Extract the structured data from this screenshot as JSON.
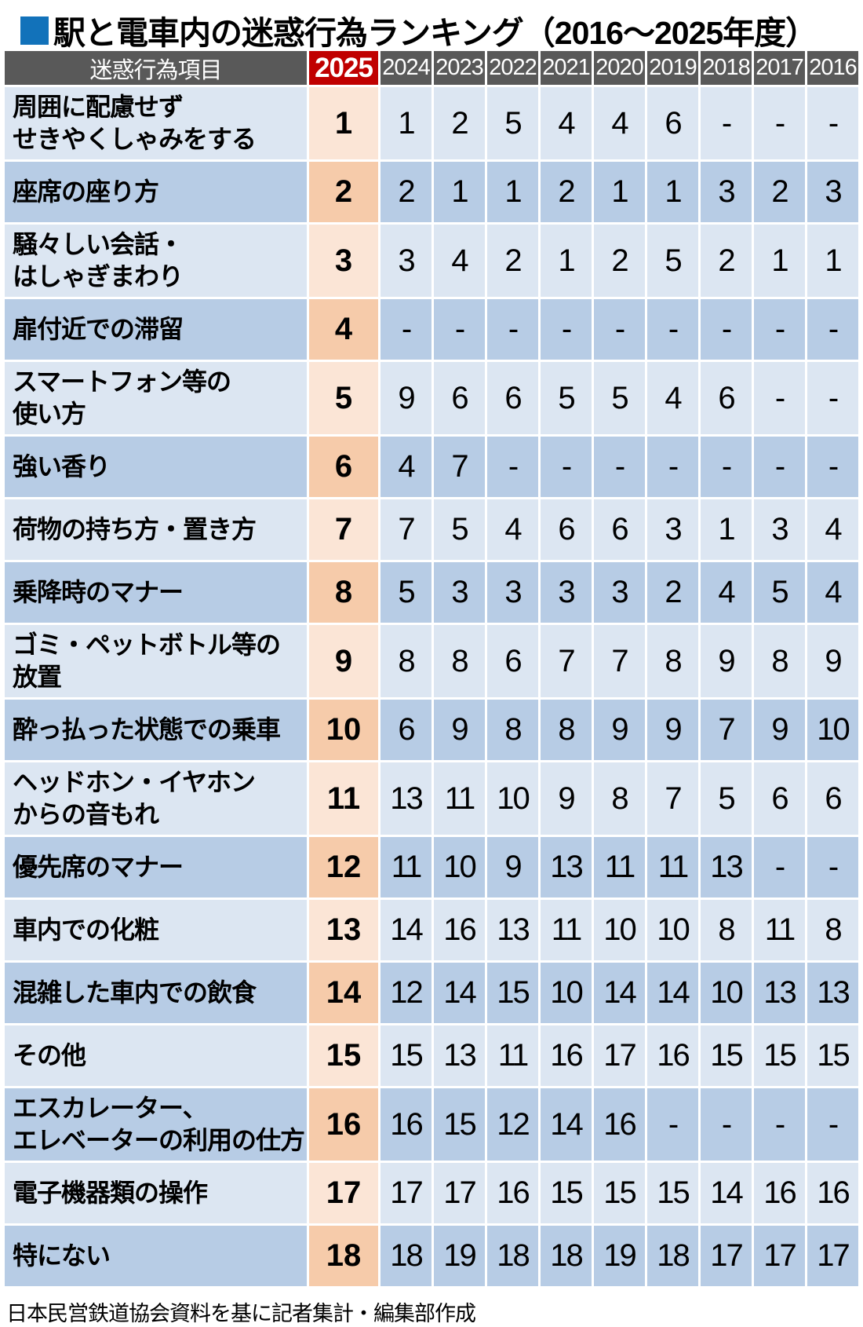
{
  "title": {
    "text": "駅と電車内の迷惑行為ランキング（2016～2025年度）",
    "bullet": "■"
  },
  "source_note": "日本民営鉄道協会資料を基に記者集計・編集部作成",
  "colors": {
    "header-bg": "#595959",
    "header-red": "#c00000",
    "row-light": "#dce6f2",
    "row-dark": "#b7cce5",
    "rank-light": "#fbe5d6",
    "rank-dark": "#f6cbaa",
    "title-blue": "#1272ba"
  },
  "chart_data": {
    "type": "table",
    "title": "駅と電車内の迷惑行為ランキング（2016～2025年度）",
    "columns": [
      "迷惑行為項目",
      "2025",
      "2024",
      "2023",
      "2022",
      "2021",
      "2020",
      "2019",
      "2018",
      "2017",
      "2016"
    ],
    "highlight_column": "2025",
    "rows": [
      {
        "item": "周囲に配慮せず\nせきやくしゃみをする",
        "rank_2025": "1",
        "values": [
          "1",
          "2",
          "5",
          "4",
          "4",
          "6",
          "-",
          "-",
          "-"
        ]
      },
      {
        "item": "座席の座り方",
        "rank_2025": "2",
        "values": [
          "2",
          "1",
          "1",
          "2",
          "1",
          "1",
          "3",
          "2",
          "3"
        ]
      },
      {
        "item": "騒々しい会話・\nはしゃぎまわり",
        "rank_2025": "3",
        "values": [
          "3",
          "4",
          "2",
          "1",
          "2",
          "5",
          "2",
          "1",
          "1"
        ]
      },
      {
        "item": "扉付近での滞留",
        "rank_2025": "4",
        "values": [
          "-",
          "-",
          "-",
          "-",
          "-",
          "-",
          "-",
          "-",
          "-"
        ]
      },
      {
        "item": "スマートフォン等の\n使い方",
        "rank_2025": "5",
        "values": [
          "9",
          "6",
          "6",
          "5",
          "5",
          "4",
          "6",
          "-",
          "-"
        ]
      },
      {
        "item": "強い香り",
        "rank_2025": "6",
        "values": [
          "4",
          "7",
          "-",
          "-",
          "-",
          "-",
          "-",
          "-",
          "-"
        ]
      },
      {
        "item": "荷物の持ち方・置き方",
        "rank_2025": "7",
        "values": [
          "7",
          "5",
          "4",
          "6",
          "6",
          "3",
          "1",
          "3",
          "4"
        ]
      },
      {
        "item": "乗降時のマナー",
        "rank_2025": "8",
        "values": [
          "5",
          "3",
          "3",
          "3",
          "3",
          "2",
          "4",
          "5",
          "4"
        ]
      },
      {
        "item": "ゴミ・ペットボトル等の\n放置",
        "rank_2025": "9",
        "values": [
          "8",
          "8",
          "6",
          "7",
          "7",
          "8",
          "9",
          "8",
          "9"
        ]
      },
      {
        "item": "酔っ払った状態での乗車",
        "rank_2025": "10",
        "values": [
          "6",
          "9",
          "8",
          "8",
          "9",
          "9",
          "7",
          "9",
          "10"
        ]
      },
      {
        "item": "ヘッドホン・イヤホン\nからの音もれ",
        "rank_2025": "11",
        "values": [
          "13",
          "11",
          "10",
          "9",
          "8",
          "7",
          "5",
          "6",
          "6"
        ]
      },
      {
        "item": "優先席のマナー",
        "rank_2025": "12",
        "values": [
          "11",
          "10",
          "9",
          "13",
          "11",
          "11",
          "13",
          "-",
          "-"
        ]
      },
      {
        "item": "車内での化粧",
        "rank_2025": "13",
        "values": [
          "14",
          "16",
          "13",
          "11",
          "10",
          "10",
          "8",
          "11",
          "8"
        ]
      },
      {
        "item": "混雑した車内での飲食",
        "rank_2025": "14",
        "values": [
          "12",
          "14",
          "15",
          "10",
          "14",
          "14",
          "10",
          "13",
          "13"
        ]
      },
      {
        "item": "その他",
        "rank_2025": "15",
        "values": [
          "15",
          "13",
          "11",
          "16",
          "17",
          "16",
          "15",
          "15",
          "15"
        ]
      },
      {
        "item": "エスカレーター、\nエレベーターの利用の仕方",
        "rank_2025": "16",
        "values": [
          "16",
          "15",
          "12",
          "14",
          "16",
          "-",
          "-",
          "-",
          "-"
        ]
      },
      {
        "item": "電子機器類の操作",
        "rank_2025": "17",
        "values": [
          "17",
          "17",
          "16",
          "15",
          "15",
          "15",
          "14",
          "16",
          "16"
        ]
      },
      {
        "item": "特にない",
        "rank_2025": "18",
        "values": [
          "18",
          "19",
          "18",
          "18",
          "19",
          "18",
          "17",
          "17",
          "17"
        ]
      }
    ]
  }
}
